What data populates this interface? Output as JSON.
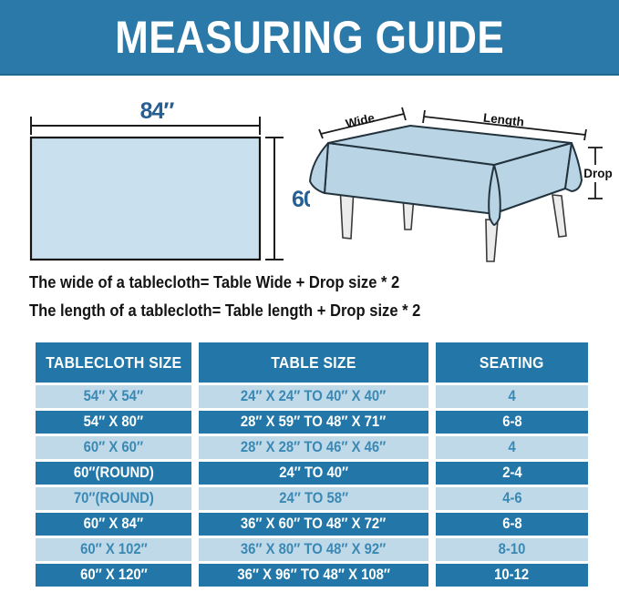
{
  "header": {
    "title": "MEASURING GUIDE"
  },
  "colors": {
    "banner_blue": "#2b79a8",
    "cell_dark": "#2277a8",
    "row_light": "#bfd9e8",
    "light_text": "#3a89b5",
    "rect_fill": "#c9e0ee",
    "cloth_fill": "#b8d4e5",
    "dim_text": "#265f94",
    "ink": "#141414"
  },
  "diagram_left": {
    "width_label": "84″",
    "height_label": "60″"
  },
  "diagram_right": {
    "wide_label": "Wide",
    "length_label": "Length",
    "drop_label": "Drop"
  },
  "formulas": {
    "line1": "The wide of a tablecloth= Table Wide + Drop size * 2",
    "line2": "The length of a tablecloth= Table length + Drop size * 2"
  },
  "table": {
    "columns": [
      "TABLECLOTH SIZE",
      "TABLE SIZE",
      "SEATING"
    ],
    "rows": [
      [
        "54″ X 54″",
        "24″ X 24″ TO 40″ X 40″",
        "4"
      ],
      [
        "54″ X 80″",
        "28″ X 59″ TO 48″ X 71″",
        "6-8"
      ],
      [
        "60″ X 60″",
        "28″ X 28″ TO 46″ X 46″",
        "4"
      ],
      [
        "60″(ROUND)",
        "24″ TO 40″",
        "2-4"
      ],
      [
        "70″(ROUND)",
        "24″ TO 58″",
        "4-6"
      ],
      [
        "60″ X 84″",
        "36″ X 60″ TO 48″ X 72″",
        "6-8"
      ],
      [
        "60″ X 102″",
        "36″ X 80″ TO 48″ X 92″",
        "8-10"
      ],
      [
        "60″ X 120″",
        "36″ X 96″ TO 48″ X 108″",
        "10-12"
      ]
    ]
  }
}
